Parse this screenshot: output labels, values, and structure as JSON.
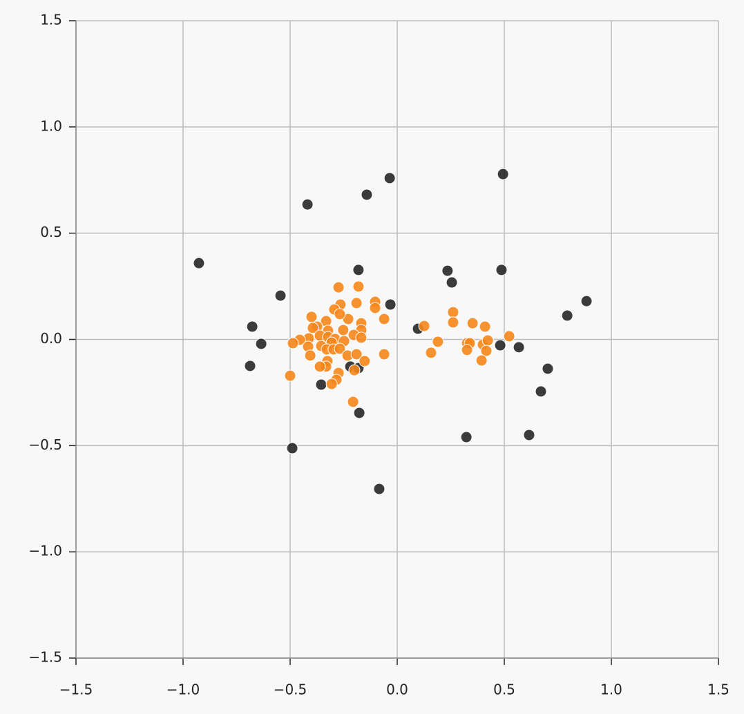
{
  "chart_data": {
    "type": "scatter",
    "xlim": [
      -1.5,
      1.5
    ],
    "ylim": [
      -1.5,
      1.5
    ],
    "xticks": [
      {
        "value": -1.5,
        "label": "−1.5"
      },
      {
        "value": -1,
        "label": "−1.0"
      },
      {
        "value": -0.5,
        "label": "−0.5"
      },
      {
        "value": 0,
        "label": "0.0"
      },
      0.5,
      {
        "value": 1,
        "label": "1.0"
      },
      1.5
    ],
    "yticks": [
      {
        "value": -1.5,
        "label": "−1.5"
      },
      {
        "value": -1,
        "label": "−1.0"
      },
      {
        "value": -0.5,
        "label": "−0.5"
      },
      {
        "value": 0,
        "label": "0.0"
      },
      0.5,
      {
        "value": 1,
        "label": "1.0"
      },
      1.5
    ],
    "grid": true,
    "series": [
      {
        "color": "#262626",
        "x": [
          -0.926,
          -0.419,
          -0.142,
          -0.035,
          0.494,
          -0.181,
          0.235,
          0.255,
          0.487,
          -0.545,
          -0.032,
          0.884,
          0.794,
          -0.677,
          0.097,
          -0.635,
          -0.687,
          0.481,
          0.568,
          0.703,
          0.671,
          -0.355,
          -0.219,
          -0.181,
          -0.177,
          0.323,
          0.616,
          -0.49,
          -0.084
        ],
        "values": [
          0.359,
          0.635,
          0.681,
          0.759,
          0.778,
          0.327,
          0.323,
          0.268,
          0.327,
          0.206,
          0.164,
          0.18,
          0.112,
          0.06,
          0.05,
          -0.021,
          -0.125,
          -0.028,
          -0.037,
          -0.138,
          -0.245,
          -0.213,
          -0.128,
          -0.135,
          -0.346,
          -0.46,
          -0.45,
          -0.512,
          -0.704
        ]
      },
      {
        "color": "#f5861a",
        "x": [
          -0.181,
          -0.274,
          -0.103,
          -0.19,
          -0.103,
          -0.265,
          -0.294,
          -0.061,
          -0.168,
          -0.4,
          -0.229,
          -0.268,
          -0.332,
          -0.374,
          -0.394,
          -0.323,
          -0.252,
          -0.168,
          -0.203,
          -0.168,
          -0.361,
          -0.413,
          -0.455,
          -0.323,
          -0.29,
          -0.248,
          -0.306,
          -0.355,
          -0.416,
          -0.487,
          -0.329,
          -0.297,
          -0.268,
          -0.232,
          -0.406,
          -0.19,
          -0.152,
          -0.326,
          -0.332,
          -0.2,
          -0.361,
          -0.274,
          -0.284,
          -0.306,
          -0.5,
          -0.206,
          -0.061,
          0.126,
          0.19,
          0.158,
          0.261,
          0.261,
          0.352,
          0.41,
          0.326,
          0.339,
          0.4,
          0.423,
          0.523,
          0.326,
          0.416,
          0.394
        ],
        "values": [
          0.249,
          0.245,
          0.177,
          0.171,
          0.148,
          0.164,
          0.141,
          0.096,
          0.076,
          0.106,
          0.096,
          0.119,
          0.086,
          0.06,
          0.054,
          0.041,
          0.044,
          0.044,
          0.021,
          0.008,
          0.018,
          0.005,
          -0.002,
          0.011,
          0.002,
          -0.008,
          -0.015,
          -0.031,
          -0.034,
          -0.018,
          -0.047,
          -0.047,
          -0.044,
          -0.076,
          -0.076,
          -0.07,
          -0.102,
          -0.102,
          -0.128,
          -0.145,
          -0.128,
          -0.158,
          -0.19,
          -0.21,
          -0.171,
          -0.294,
          -0.07,
          0.063,
          -0.011,
          -0.063,
          0.128,
          0.08,
          0.076,
          0.06,
          -0.018,
          -0.018,
          -0.024,
          -0.005,
          0.015,
          -0.05,
          -0.054,
          -0.099
        ]
      }
    ]
  }
}
